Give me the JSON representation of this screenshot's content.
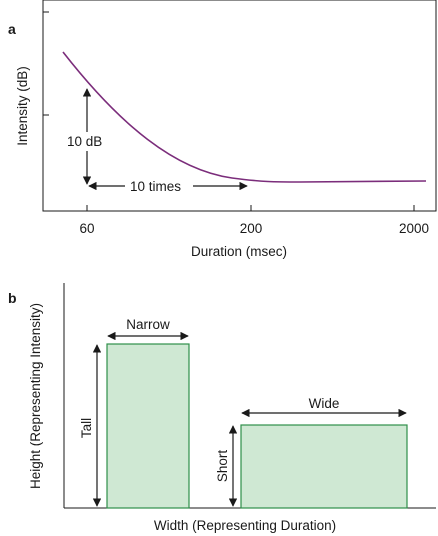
{
  "panel_a": {
    "letter": "a",
    "y_axis_label": "Intensity (dB)",
    "x_axis_label": "Duration (msec)",
    "x_ticks": [
      "60",
      "200",
      "2000"
    ],
    "curve_color": "#7b2d7b",
    "annotation_vertical": "10 dB",
    "annotation_horizontal": "10 times"
  },
  "panel_b": {
    "letter": "b",
    "y_axis_label": "Height (Representing Intensity)",
    "x_axis_label": "Width (Representing Duration)",
    "narrow_label": "Narrow",
    "tall_label": "Tall",
    "wide_label": "Wide",
    "short_label": "Short",
    "box_fill": "#cfe8d3",
    "box_stroke": "#2f8f4a"
  }
}
